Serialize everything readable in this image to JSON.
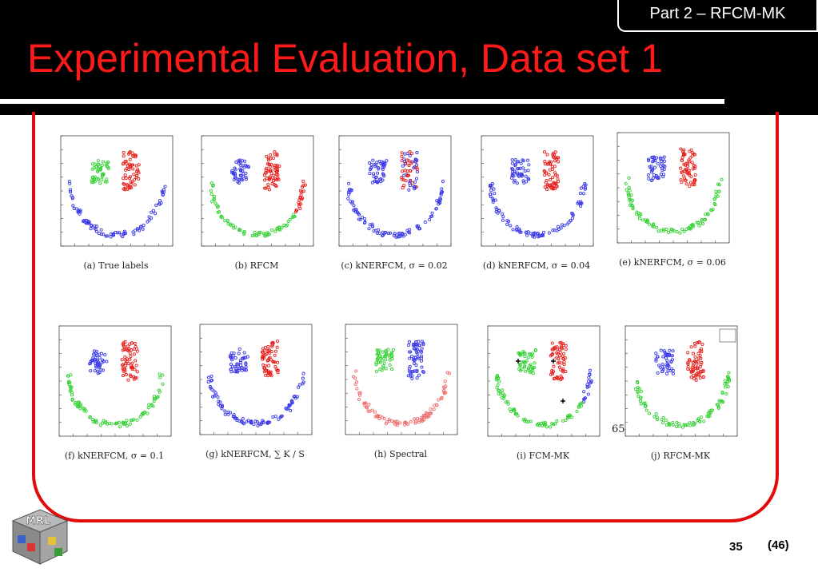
{
  "header": {
    "section_tab": "Part 2 – RFCM-MK",
    "title": "Experimental Evaluation, Data set 1"
  },
  "figure": {
    "captions": [
      "(a) True labels",
      "(b) RFCM",
      "(c) kNERFCM, σ = 0.02",
      "(d) kNERFCM, σ = 0.04",
      "(e) kNERFCM, σ = 0.06",
      "(f) kNERFCM, σ = 0.1",
      "(g) kNERFCM, ∑ K / S",
      "(h) Spectral",
      "(i) FCM-MK",
      "(j) RFCM-MK"
    ],
    "side_number": "65",
    "colors": {
      "red": "#e8201c",
      "green": "#37d137",
      "blue": "#3a3ae8",
      "pink": "#ef6f6f"
    }
  },
  "footer": {
    "logo_text": "MRL",
    "page_number": "35",
    "page_total": "(46)"
  }
}
